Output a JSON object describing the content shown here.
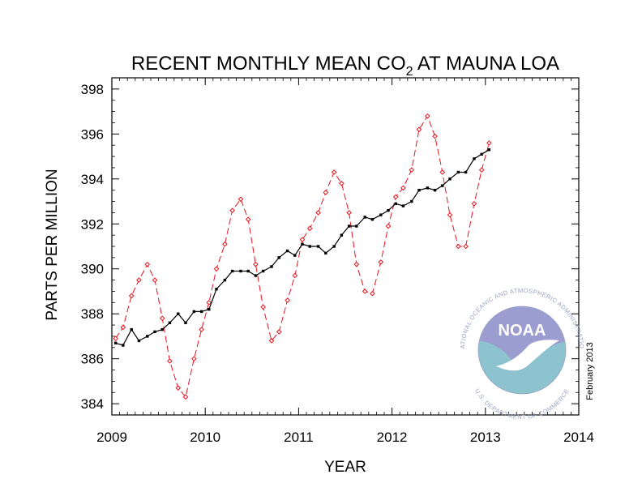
{
  "chart_data": {
    "type": "line",
    "title": "RECENT MONTHLY MEAN CO",
    "title_subscript": "2",
    "title_suffix": " AT MAUNA LOA",
    "xlabel": "YEAR",
    "ylabel": "PARTS PER MILLION",
    "xlim": [
      2009,
      2014
    ],
    "ylim": [
      383.5,
      398.5
    ],
    "x_ticks": [
      2009,
      2010,
      2011,
      2012,
      2013,
      2014
    ],
    "x_tick_labels": [
      "2009",
      "2010",
      "2011",
      "2012",
      "2013",
      "2014"
    ],
    "y_ticks": [
      384,
      386,
      388,
      390,
      392,
      394,
      396,
      398
    ],
    "y_tick_labels": [
      "384",
      "386",
      "388",
      "390",
      "392",
      "394",
      "396",
      "398"
    ],
    "grid": false,
    "legend": "none",
    "series": [
      {
        "style": "dashed",
        "color": "#e8141e",
        "marker": "open-diamond",
        "x": [
          2009.04,
          2009.12,
          2009.21,
          2009.29,
          2009.38,
          2009.46,
          2009.54,
          2009.62,
          2009.71,
          2009.79,
          2009.88,
          2009.96,
          2010.04,
          2010.12,
          2010.21,
          2010.29,
          2010.38,
          2010.46,
          2010.54,
          2010.62,
          2010.71,
          2010.79,
          2010.88,
          2010.96,
          2011.04,
          2011.12,
          2011.21,
          2011.29,
          2011.38,
          2011.46,
          2011.54,
          2011.62,
          2011.71,
          2011.79,
          2011.88,
          2011.96,
          2012.04,
          2012.12,
          2012.21,
          2012.29,
          2012.38,
          2012.46,
          2012.54,
          2012.62,
          2012.71,
          2012.79,
          2012.88,
          2012.96,
          2013.04
        ],
        "y": [
          386.9,
          387.4,
          388.8,
          389.5,
          390.2,
          389.5,
          387.8,
          385.9,
          384.7,
          384.3,
          386.0,
          387.3,
          388.5,
          390.0,
          391.1,
          392.6,
          393.1,
          392.2,
          390.2,
          388.3,
          386.8,
          387.2,
          388.6,
          389.7,
          391.3,
          391.8,
          392.5,
          393.4,
          394.3,
          393.8,
          392.5,
          390.2,
          389.0,
          388.9,
          390.3,
          391.9,
          393.2,
          393.6,
          394.4,
          396.2,
          396.8,
          395.9,
          394.3,
          392.4,
          391.0,
          391.0,
          392.9,
          394.4,
          395.6
        ]
      },
      {
        "style": "solid",
        "color": "#000000",
        "marker": "filled-square",
        "x": [
          2009.04,
          2009.12,
          2009.21,
          2009.29,
          2009.38,
          2009.46,
          2009.54,
          2009.62,
          2009.71,
          2009.79,
          2009.88,
          2009.96,
          2010.04,
          2010.12,
          2010.21,
          2010.29,
          2010.38,
          2010.46,
          2010.54,
          2010.62,
          2010.71,
          2010.79,
          2010.88,
          2010.96,
          2011.04,
          2011.12,
          2011.21,
          2011.29,
          2011.38,
          2011.46,
          2011.54,
          2011.62,
          2011.71,
          2011.79,
          2011.88,
          2011.96,
          2012.04,
          2012.12,
          2012.21,
          2012.29,
          2012.38,
          2012.46,
          2012.54,
          2012.62,
          2012.71,
          2012.79,
          2012.88,
          2012.96,
          2013.04
        ],
        "y": [
          386.7,
          386.6,
          387.3,
          386.8,
          387.0,
          387.2,
          387.3,
          387.6,
          388.0,
          387.6,
          388.1,
          388.1,
          388.2,
          389.1,
          389.5,
          389.9,
          389.9,
          389.9,
          389.7,
          389.9,
          390.1,
          390.5,
          390.8,
          390.6,
          391.1,
          391.0,
          391.0,
          390.7,
          391.0,
          391.5,
          391.9,
          391.9,
          392.3,
          392.2,
          392.4,
          392.6,
          392.9,
          392.8,
          393.0,
          393.5,
          393.6,
          393.5,
          393.7,
          394.0,
          394.3,
          394.3,
          394.9,
          395.1,
          395.3
        ]
      }
    ]
  },
  "credit": "February 2013",
  "logo": {
    "wordmark": "NOAA",
    "seal_text_top": "NATIONAL OCEANIC AND ATMOSPHERIC ADMINISTRATION",
    "seal_text_bottom": "U.S. DEPARTMENT OF COMMERCE",
    "colors": {
      "sky": "#9b9ccf",
      "sea": "#8cc3cf",
      "bird": "#ffffff",
      "text": "#9aa4c4"
    }
  }
}
